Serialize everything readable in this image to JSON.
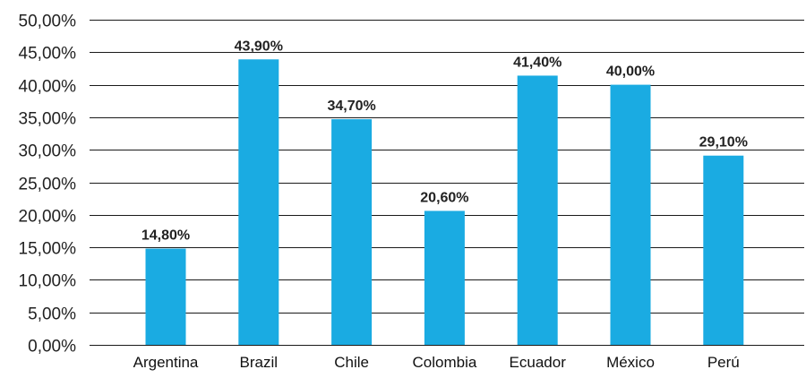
{
  "chart_data": {
    "type": "bar",
    "title": "",
    "xlabel": "",
    "ylabel": "",
    "categories": [
      "Argentina",
      "Brazil",
      "Chile",
      "Colombia",
      "Ecuador",
      "México",
      "Perú"
    ],
    "values": [
      14.8,
      43.9,
      34.7,
      20.6,
      41.4,
      40.0,
      29.1
    ],
    "data_labels": [
      "14,80%",
      "43,90%",
      "34,70%",
      "20,60%",
      "41,40%",
      "40,00%",
      "29,10%"
    ],
    "ylim": [
      0,
      50
    ],
    "yticks": [
      0,
      5,
      10,
      15,
      20,
      25,
      30,
      35,
      40,
      45,
      50
    ],
    "ytick_labels": [
      "0,00%",
      "5,00%",
      "10,00%",
      "15,00%",
      "20,00%",
      "25,00%",
      "30,00%",
      "35,00%",
      "40,00%",
      "45,00%",
      "50,00%"
    ],
    "grid": true,
    "bar_color": "#1aabe2",
    "grid_color": "#1a1a1a"
  }
}
